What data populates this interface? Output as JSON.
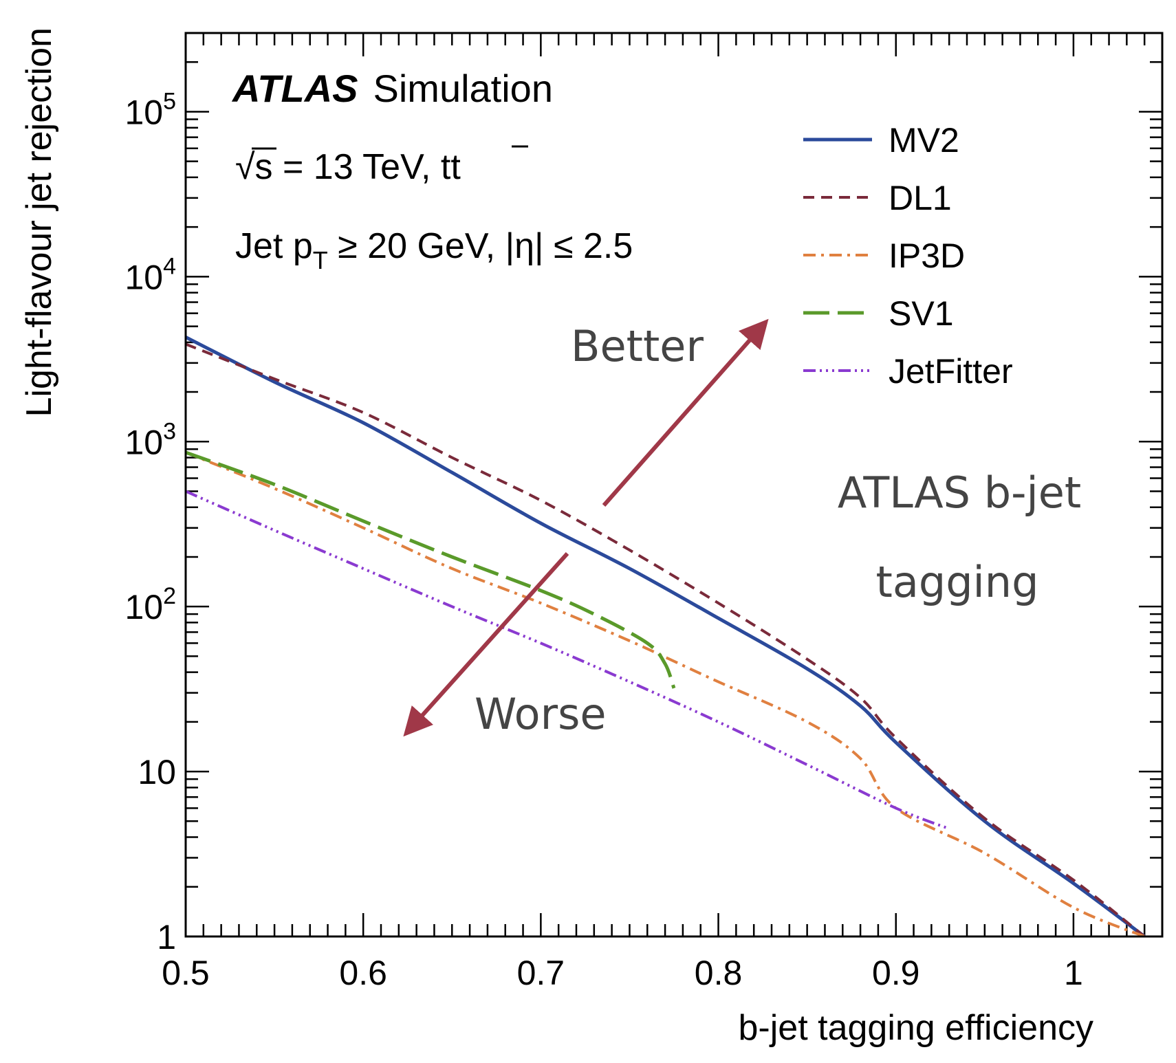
{
  "chart_data": {
    "type": "line",
    "title": "",
    "xlabel": "b-jet tagging efficiency",
    "ylabel": "Light-flavour jet rejection",
    "xlim": [
      0.5,
      1.05
    ],
    "ylim": [
      1,
      300000
    ],
    "y_scale": "log",
    "grid": false,
    "x_ticks": [
      {
        "value": 0.5,
        "label": "0.5"
      },
      {
        "value": 0.6,
        "label": "0.6"
      },
      {
        "value": 0.7,
        "label": "0.7"
      },
      {
        "value": 0.8,
        "label": "0.8"
      },
      {
        "value": 0.9,
        "label": "0.9"
      },
      {
        "value": 1.0,
        "label": "1"
      }
    ],
    "y_ticks": [
      {
        "value": 1,
        "base": "1",
        "exp": ""
      },
      {
        "value": 10,
        "base": "10",
        "exp": ""
      },
      {
        "value": 100,
        "base": "10",
        "exp": "2"
      },
      {
        "value": 1000,
        "base": "10",
        "exp": "3"
      },
      {
        "value": 10000,
        "base": "10",
        "exp": "4"
      },
      {
        "value": 100000,
        "base": "10",
        "exp": "5"
      }
    ],
    "experiment": {
      "bold": "ATLAS",
      "rest": "Simulation"
    },
    "info_lines": {
      "energy": {
        "sqrt": "√",
        "s": "s",
        "eq": " = 13 TeV, ",
        "tt": "tt"
      },
      "cuts": {
        "prefix": "Jet p",
        "sub": "T",
        "suffix": " ≥ 20 GeV, |η| ≤ 2.5"
      }
    },
    "legend_position": "top-right",
    "series": [
      {
        "name": "MV2",
        "color": "#2b4a9b",
        "dash": "solid",
        "width": 5,
        "x": [
          0.5,
          0.55,
          0.6,
          0.65,
          0.7,
          0.75,
          0.8,
          0.85,
          0.88,
          0.9,
          0.95,
          1.0,
          1.04
        ],
        "y": [
          4300,
          2300,
          1300,
          650,
          320,
          170,
          85,
          42,
          25,
          15,
          5,
          2.1,
          1
        ]
      },
      {
        "name": "DL1",
        "color": "#7a2a3a",
        "dash": "16,10",
        "width": 4,
        "x": [
          0.5,
          0.55,
          0.6,
          0.65,
          0.7,
          0.75,
          0.8,
          0.85,
          0.88,
          0.9,
          0.95,
          1.0,
          1.04
        ],
        "y": [
          3900,
          2400,
          1500,
          800,
          440,
          220,
          105,
          48,
          28,
          16,
          5.2,
          2.2,
          1
        ]
      },
      {
        "name": "IP3D",
        "color": "#e08040",
        "dash": "18,8,4,8",
        "width": 4,
        "x": [
          0.5,
          0.55,
          0.6,
          0.65,
          0.7,
          0.75,
          0.78,
          0.8,
          0.85,
          0.88,
          0.9,
          0.95,
          1.0,
          1.04
        ],
        "y": [
          860,
          520,
          300,
          170,
          105,
          62,
          44,
          35,
          20,
          12,
          6,
          3.2,
          1.5,
          1
        ]
      },
      {
        "name": "SV1",
        "color": "#5a9a2a",
        "dash": "38,12",
        "width": 5,
        "x": [
          0.5,
          0.55,
          0.6,
          0.65,
          0.7,
          0.73,
          0.76,
          0.77,
          0.775
        ],
        "y": [
          860,
          550,
          330,
          200,
          125,
          90,
          60,
          45,
          32
        ]
      },
      {
        "name": "JetFitter",
        "color": "#8a3ad0",
        "dash": "18,6,3,6,3,6,3,6",
        "width": 4,
        "x": [
          0.5,
          0.55,
          0.6,
          0.65,
          0.7,
          0.75,
          0.8,
          0.85,
          0.9,
          0.93
        ],
        "y": [
          500,
          290,
          170,
          100,
          60,
          35,
          20,
          11,
          6,
          4.5
        ]
      }
    ],
    "annotations": {
      "better": "Better",
      "worse": "Worse",
      "note_line1": "ATLAS b-jet",
      "note_line2": "tagging"
    }
  }
}
